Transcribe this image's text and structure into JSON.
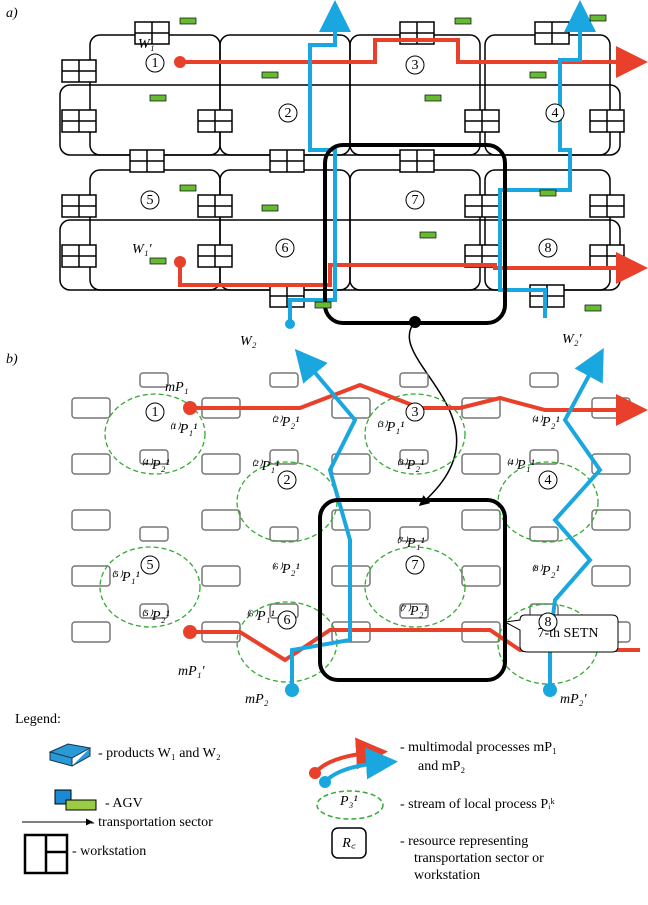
{
  "panel_a": {
    "label": "a)",
    "sectors": [
      "1",
      "2",
      "3",
      "4",
      "5",
      "6",
      "7",
      "8"
    ],
    "workpieces": [
      "W₁",
      "W₁′",
      "W₂",
      "W₂′"
    ]
  },
  "panel_b": {
    "label": "b)",
    "sectors": [
      "1",
      "2",
      "3",
      "4",
      "5",
      "6",
      "7",
      "8"
    ],
    "processes": [
      "mP₁",
      "mP₁′",
      "mP₂",
      "mP₂′"
    ],
    "local_processes": [
      "⁽¹⁾P₁¹",
      "⁽²⁾P₂¹",
      "⁽³⁾P₁¹",
      "⁽⁴⁾P₂¹",
      "⁽⁴⁾P₂¹",
      "⁽²⁾P₁¹",
      "⁽³⁾P₂¹",
      "⁽⁴⁾P₁¹",
      "⁽⁷⁾P₁¹",
      "⁽⁵⁾P₁¹",
      "⁽⁶⁾P₂¹",
      "⁽⁸⁾P₂¹",
      "⁽⁵⁾P₂¹",
      "⁽⁶⁾P₁¹",
      "⁽⁷⁾P₂¹"
    ],
    "callout": "7-th SETN"
  },
  "legend": {
    "title": "Legend:",
    "products": "- products W₁ and W₂",
    "agv": "- AGV",
    "sector": "- transportation sector",
    "workstation": "- workstation",
    "multimodal": [
      "- multimodal processes mP₁",
      "and mP₂"
    ],
    "stream_icon": "P₃¹",
    "stream": "- stream of local process Pᵢᵏ",
    "resource_icon": "R꜀",
    "resource": [
      "- resource representing",
      "transportation sector or",
      "workstation"
    ]
  }
}
